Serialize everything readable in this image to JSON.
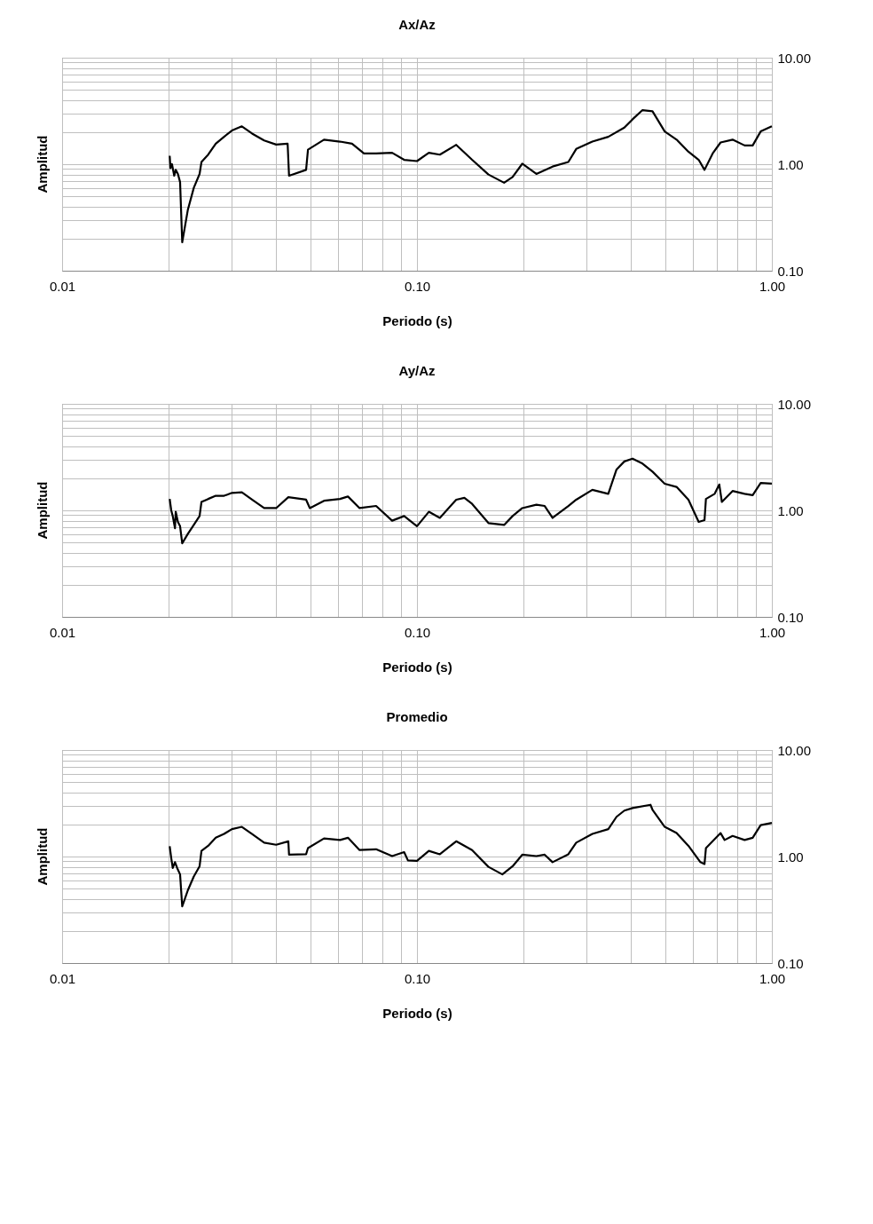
{
  "chart_data": [
    {
      "type": "line",
      "title": "Ax/Az",
      "xlabel": "Periodo (s)",
      "ylabel": "Amplitud",
      "log": "xy",
      "grid": true,
      "xlim": [
        0.01,
        1
      ],
      "ylim": [
        0.1,
        10
      ],
      "xticks": [
        {
          "value": 0.01,
          "label": "0.01"
        },
        {
          "value": 0.02,
          "label": null
        },
        {
          "value": 0.03,
          "label": null
        },
        {
          "value": 0.04,
          "label": null
        },
        {
          "value": 0.05,
          "label": null
        },
        {
          "value": 0.06,
          "label": null
        },
        {
          "value": 0.07,
          "label": null
        },
        {
          "value": 0.08,
          "label": null
        },
        {
          "value": 0.09,
          "label": null
        },
        {
          "value": 0.1,
          "label": "0.10"
        },
        {
          "value": 0.2,
          "label": null
        },
        {
          "value": 0.3,
          "label": null
        },
        {
          "value": 0.4,
          "label": null
        },
        {
          "value": 0.5,
          "label": null
        },
        {
          "value": 0.6,
          "label": null
        },
        {
          "value": 0.7,
          "label": null
        },
        {
          "value": 0.8,
          "label": null
        },
        {
          "value": 0.9,
          "label": null
        },
        {
          "value": 1,
          "label": "1.00"
        }
      ],
      "yticks": [
        {
          "value": 0.1,
          "label": "0.10"
        },
        {
          "value": 0.2,
          "label": null
        },
        {
          "value": 0.3,
          "label": null
        },
        {
          "value": 0.4,
          "label": null
        },
        {
          "value": 0.5,
          "label": null
        },
        {
          "value": 0.6,
          "label": null
        },
        {
          "value": 0.7,
          "label": null
        },
        {
          "value": 0.8,
          "label": null
        },
        {
          "value": 0.9,
          "label": null
        },
        {
          "value": 1,
          "label": "1.00"
        },
        {
          "value": 2,
          "label": null
        },
        {
          "value": 3,
          "label": null
        },
        {
          "value": 4,
          "label": null
        },
        {
          "value": 5,
          "label": null
        },
        {
          "value": 6,
          "label": null
        },
        {
          "value": 7,
          "label": null
        },
        {
          "value": 8,
          "label": null
        },
        {
          "value": 9,
          "label": null
        },
        {
          "value": 10,
          "label": "10.00"
        }
      ],
      "series": [
        {
          "color": "#000000",
          "x": [
            0.0201,
            0.0202,
            0.0204,
            0.0207,
            0.0209,
            0.0212,
            0.0215,
            0.0218,
            0.0226,
            0.0235,
            0.0244,
            0.0247,
            0.0258,
            0.0271,
            0.0286,
            0.0301,
            0.0321,
            0.0343,
            0.0371,
            0.0401,
            0.0432,
            0.0436,
            0.0487,
            0.0493,
            0.0547,
            0.0607,
            0.0656,
            0.0709,
            0.0767,
            0.0851,
            0.092,
            0.1,
            0.108,
            0.116,
            0.129,
            0.143,
            0.159,
            0.176,
            0.186,
            0.198,
            0.217,
            0.241,
            0.267,
            0.281,
            0.312,
            0.346,
            0.384,
            0.405,
            0.432,
            0.461,
            0.499,
            0.539,
            0.582,
            0.622,
            0.646,
            0.681,
            0.717,
            0.775,
            0.838,
            0.883,
            0.93,
            1.0
          ],
          "values": [
            1.2,
            0.92,
            1.0,
            0.78,
            0.885,
            0.81,
            0.68,
            0.185,
            0.37,
            0.6,
            0.81,
            1.05,
            1.23,
            1.56,
            1.81,
            2.07,
            2.27,
            1.94,
            1.67,
            1.53,
            1.56,
            0.78,
            0.885,
            1.37,
            1.7,
            1.63,
            1.56,
            1.26,
            1.26,
            1.28,
            1.1,
            1.07,
            1.28,
            1.23,
            1.52,
            1.1,
            0.8,
            0.67,
            0.76,
            1.01,
            0.81,
            0.95,
            1.05,
            1.39,
            1.63,
            1.81,
            2.21,
            2.64,
            3.22,
            3.14,
            2.03,
            1.7,
            1.31,
            1.1,
            0.885,
            1.26,
            1.6,
            1.7,
            1.5,
            1.5,
            2.03,
            2.27
          ]
        }
      ]
    },
    {
      "type": "line",
      "title": "Ay/Az",
      "xlabel": "Periodo (s)",
      "ylabel": "Amplitud",
      "log": "xy",
      "grid": true,
      "xlim": [
        0.01,
        1
      ],
      "ylim": [
        0.1,
        10
      ],
      "xticks": [
        {
          "value": 0.01,
          "label": "0.01"
        },
        {
          "value": 0.02,
          "label": null
        },
        {
          "value": 0.03,
          "label": null
        },
        {
          "value": 0.04,
          "label": null
        },
        {
          "value": 0.05,
          "label": null
        },
        {
          "value": 0.06,
          "label": null
        },
        {
          "value": 0.07,
          "label": null
        },
        {
          "value": 0.08,
          "label": null
        },
        {
          "value": 0.09,
          "label": null
        },
        {
          "value": 0.1,
          "label": "0.10"
        },
        {
          "value": 0.2,
          "label": null
        },
        {
          "value": 0.3,
          "label": null
        },
        {
          "value": 0.4,
          "label": null
        },
        {
          "value": 0.5,
          "label": null
        },
        {
          "value": 0.6,
          "label": null
        },
        {
          "value": 0.7,
          "label": null
        },
        {
          "value": 0.8,
          "label": null
        },
        {
          "value": 0.9,
          "label": null
        },
        {
          "value": 1,
          "label": "1.00"
        }
      ],
      "yticks": [
        {
          "value": 0.1,
          "label": "0.10"
        },
        {
          "value": 0.2,
          "label": null
        },
        {
          "value": 0.3,
          "label": null
        },
        {
          "value": 0.4,
          "label": null
        },
        {
          "value": 0.5,
          "label": null
        },
        {
          "value": 0.6,
          "label": null
        },
        {
          "value": 0.7,
          "label": null
        },
        {
          "value": 0.8,
          "label": null
        },
        {
          "value": 0.9,
          "label": null
        },
        {
          "value": 1,
          "label": "1.00"
        },
        {
          "value": 2,
          "label": null
        },
        {
          "value": 3,
          "label": null
        },
        {
          "value": 4,
          "label": null
        },
        {
          "value": 5,
          "label": null
        },
        {
          "value": 6,
          "label": null
        },
        {
          "value": 7,
          "label": null
        },
        {
          "value": 8,
          "label": null
        },
        {
          "value": 9,
          "label": null
        },
        {
          "value": 10,
          "label": "10.00"
        }
      ],
      "series": [
        {
          "color": "#000000",
          "x": [
            0.0201,
            0.0203,
            0.0205,
            0.0208,
            0.0209,
            0.0212,
            0.0215,
            0.0218,
            0.0226,
            0.0235,
            0.0244,
            0.0247,
            0.0258,
            0.0271,
            0.0286,
            0.0301,
            0.0321,
            0.0343,
            0.0371,
            0.0401,
            0.0434,
            0.0487,
            0.0499,
            0.0547,
            0.0607,
            0.0639,
            0.0689,
            0.0767,
            0.0851,
            0.092,
            0.1,
            0.108,
            0.116,
            0.129,
            0.136,
            0.143,
            0.159,
            0.176,
            0.186,
            0.198,
            0.217,
            0.229,
            0.241,
            0.267,
            0.281,
            0.312,
            0.346,
            0.365,
            0.384,
            0.405,
            0.432,
            0.461,
            0.499,
            0.539,
            0.582,
            0.622,
            0.646,
            0.652,
            0.69,
            0.711,
            0.723,
            0.775,
            0.838,
            0.883,
            0.93,
            1.0
          ],
          "values": [
            1.28,
            1.0,
            0.885,
            0.68,
            0.97,
            0.78,
            0.71,
            0.49,
            0.6,
            0.73,
            0.885,
            1.2,
            1.28,
            1.37,
            1.37,
            1.46,
            1.48,
            1.26,
            1.05,
            1.05,
            1.33,
            1.26,
            1.05,
            1.23,
            1.28,
            1.35,
            1.05,
            1.1,
            0.8,
            0.885,
            0.71,
            0.97,
            0.85,
            1.26,
            1.31,
            1.15,
            0.76,
            0.73,
            0.885,
            1.05,
            1.13,
            1.1,
            0.85,
            1.1,
            1.26,
            1.56,
            1.43,
            2.42,
            2.88,
            3.06,
            2.75,
            2.31,
            1.78,
            1.66,
            1.26,
            0.78,
            0.81,
            1.28,
            1.43,
            1.75,
            1.2,
            1.52,
            1.43,
            1.39,
            1.81,
            1.78
          ]
        }
      ]
    },
    {
      "type": "line",
      "title": "Promedio",
      "xlabel": "Periodo (s)",
      "ylabel": "Amplitud",
      "log": "xy",
      "grid": true,
      "xlim": [
        0.01,
        1
      ],
      "ylim": [
        0.1,
        10
      ],
      "xticks": [
        {
          "value": 0.01,
          "label": "0.01"
        },
        {
          "value": 0.02,
          "label": null
        },
        {
          "value": 0.03,
          "label": null
        },
        {
          "value": 0.04,
          "label": null
        },
        {
          "value": 0.05,
          "label": null
        },
        {
          "value": 0.06,
          "label": null
        },
        {
          "value": 0.07,
          "label": null
        },
        {
          "value": 0.08,
          "label": null
        },
        {
          "value": 0.09,
          "label": null
        },
        {
          "value": 0.1,
          "label": "0.10"
        },
        {
          "value": 0.2,
          "label": null
        },
        {
          "value": 0.3,
          "label": null
        },
        {
          "value": 0.4,
          "label": null
        },
        {
          "value": 0.5,
          "label": null
        },
        {
          "value": 0.6,
          "label": null
        },
        {
          "value": 0.7,
          "label": null
        },
        {
          "value": 0.8,
          "label": null
        },
        {
          "value": 0.9,
          "label": null
        },
        {
          "value": 1,
          "label": "1.00"
        }
      ],
      "yticks": [
        {
          "value": 0.1,
          "label": "0.10"
        },
        {
          "value": 0.2,
          "label": null
        },
        {
          "value": 0.3,
          "label": null
        },
        {
          "value": 0.4,
          "label": null
        },
        {
          "value": 0.5,
          "label": null
        },
        {
          "value": 0.6,
          "label": null
        },
        {
          "value": 0.7,
          "label": null
        },
        {
          "value": 0.8,
          "label": null
        },
        {
          "value": 0.9,
          "label": null
        },
        {
          "value": 1,
          "label": "1.00"
        },
        {
          "value": 2,
          "label": null
        },
        {
          "value": 3,
          "label": null
        },
        {
          "value": 4,
          "label": null
        },
        {
          "value": 5,
          "label": null
        },
        {
          "value": 6,
          "label": null
        },
        {
          "value": 7,
          "label": null
        },
        {
          "value": 8,
          "label": null
        },
        {
          "value": 9,
          "label": null
        },
        {
          "value": 10,
          "label": "10.00"
        }
      ],
      "series": [
        {
          "color": "#000000",
          "x": [
            0.0201,
            0.0203,
            0.0205,
            0.0208,
            0.0211,
            0.0215,
            0.0218,
            0.0226,
            0.0235,
            0.0244,
            0.0247,
            0.0258,
            0.0271,
            0.0286,
            0.0301,
            0.0321,
            0.0343,
            0.0371,
            0.0401,
            0.0434,
            0.0436,
            0.0487,
            0.0493,
            0.0547,
            0.0607,
            0.0639,
            0.0689,
            0.0767,
            0.0851,
            0.092,
            0.0943,
            0.1,
            0.108,
            0.116,
            0.129,
            0.143,
            0.159,
            0.174,
            0.186,
            0.198,
            0.217,
            0.229,
            0.241,
            0.267,
            0.281,
            0.312,
            0.346,
            0.365,
            0.384,
            0.405,
            0.455,
            0.461,
            0.499,
            0.539,
            0.582,
            0.629,
            0.646,
            0.652,
            0.717,
            0.736,
            0.775,
            0.838,
            0.883,
            0.93,
            1.0
          ],
          "values": [
            1.25,
            0.97,
            0.78,
            0.885,
            0.78,
            0.68,
            0.34,
            0.48,
            0.65,
            0.81,
            1.13,
            1.26,
            1.5,
            1.63,
            1.81,
            1.9,
            1.63,
            1.35,
            1.29,
            1.39,
            1.04,
            1.05,
            1.2,
            1.48,
            1.43,
            1.5,
            1.15,
            1.17,
            1.01,
            1.1,
            0.92,
            0.91,
            1.13,
            1.05,
            1.39,
            1.15,
            0.8,
            0.68,
            0.81,
            1.04,
            1.01,
            1.04,
            0.885,
            1.05,
            1.35,
            1.63,
            1.81,
            2.36,
            2.7,
            2.85,
            3.06,
            2.75,
            1.9,
            1.66,
            1.26,
            0.885,
            0.85,
            1.2,
            1.66,
            1.43,
            1.56,
            1.43,
            1.5,
            1.97,
            2.07
          ]
        }
      ]
    }
  ]
}
